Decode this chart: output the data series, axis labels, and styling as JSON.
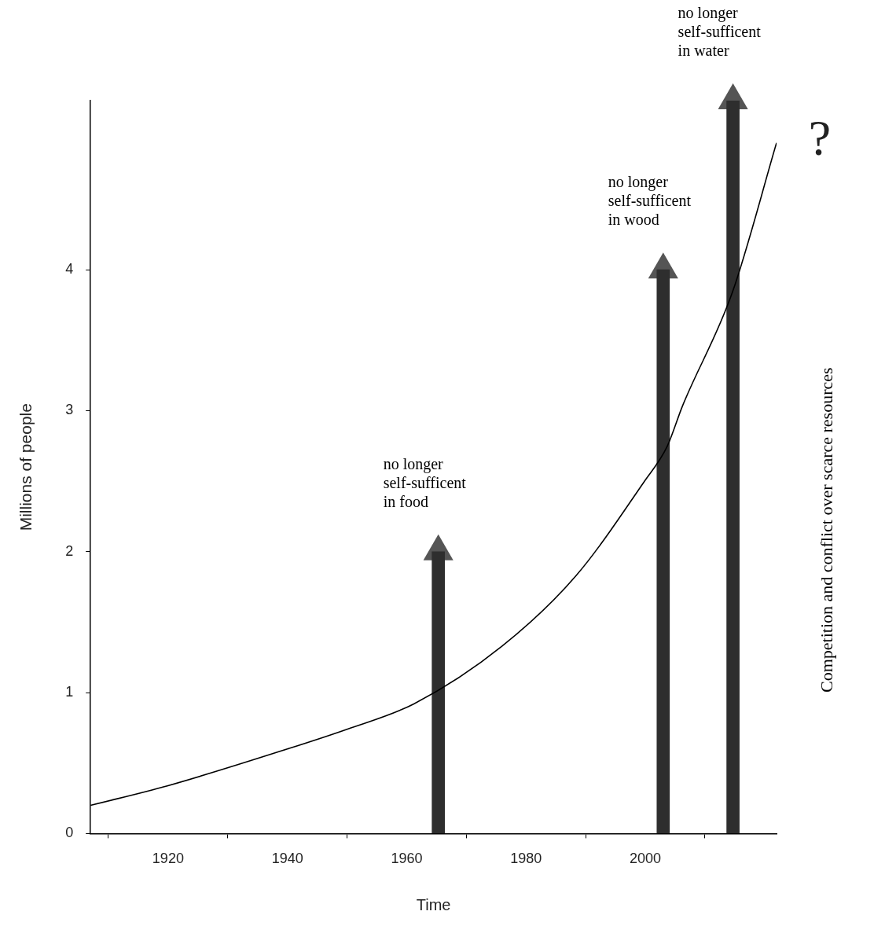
{
  "chart_data": {
    "type": "line",
    "xlabel": "Time",
    "ylabel": "Millions of people",
    "series": [
      {
        "color": "#000000",
        "x": [
          1907,
          1920,
          1940,
          1950,
          1961.2,
          1976,
          1988.4,
          1999.7,
          2003.7,
          2006.2,
          2014.6,
          2022
        ],
        "values": [
          0.2,
          0.34,
          0.6,
          0.74,
          0.92,
          1.33,
          1.83,
          2.49,
          2.75,
          3.03,
          3.84,
          4.9
        ]
      },
      {
        "type": "bar",
        "color": "#2e2e2e",
        "x": [
          1965.3,
          2003,
          2014.7
        ],
        "values": [
          2,
          4,
          5.2
        ]
      },
      {
        "type": "scatter",
        "color": "#555555",
        "marker": "triangle",
        "x": [
          1965.3,
          2003,
          2014.7
        ],
        "values": [
          2,
          4,
          5.2
        ]
      }
    ],
    "xlim": [
      1907,
      2022
    ],
    "ylim": [
      0,
      5.2
    ],
    "xticks": [
      1920,
      1940,
      1960,
      1980,
      2000
    ],
    "yticks": [
      0,
      1,
      2,
      3,
      4
    ],
    "grid": false,
    "legend": false,
    "marker": "none",
    "line_style": "solid",
    "annotations": [
      "no longer\nself-sufficent\nin food",
      "no longer\nself-sufficent\nin wood",
      "no longer\nself-sufficent\nin water",
      "?",
      "Competition and conflict over scarce resources"
    ]
  }
}
